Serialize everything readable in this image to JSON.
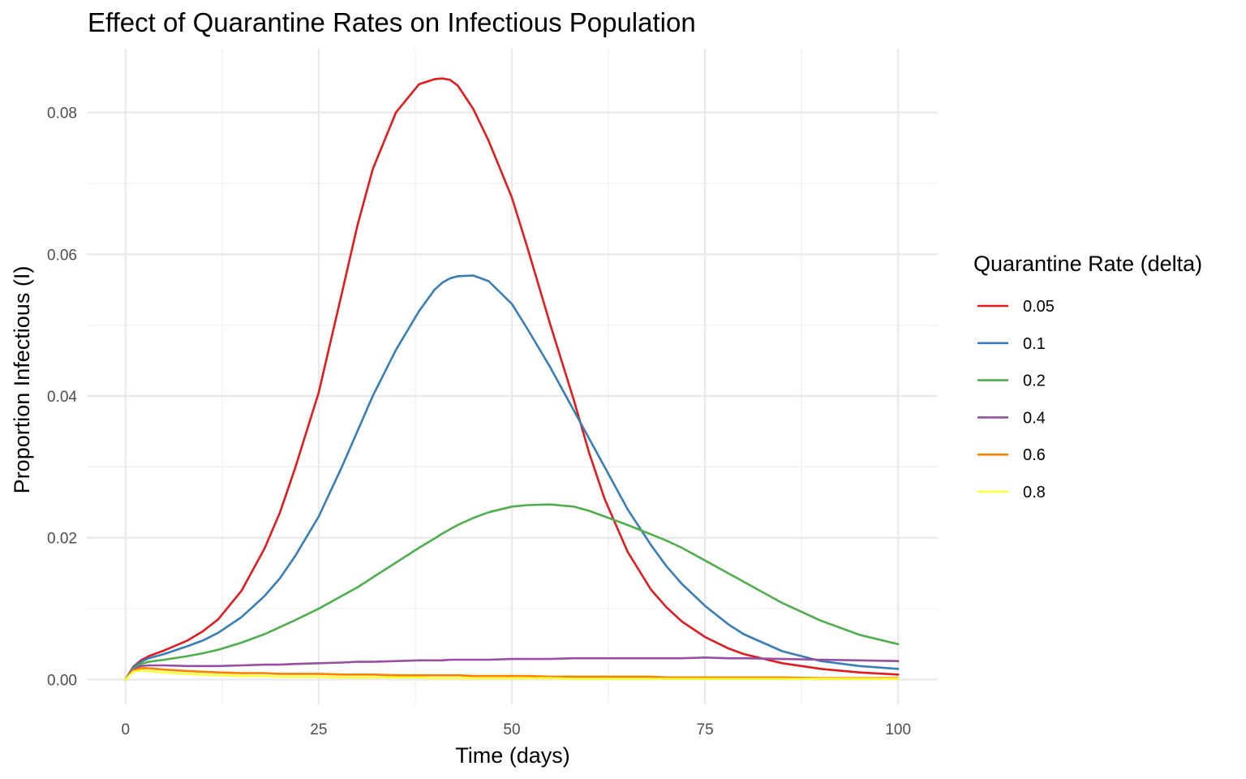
{
  "chart_data": {
    "type": "line",
    "title": "Effect of Quarantine Rates on Infectious Population",
    "xlabel": "Time (days)",
    "ylabel": "Proportion Infectious (I)",
    "xlim": [
      0,
      100
    ],
    "ylim": [
      -0.0035,
      0.089
    ],
    "x_ticks": [
      0,
      25,
      50,
      75,
      100
    ],
    "x_tick_labels": [
      "0",
      "25",
      "50",
      "75",
      "100"
    ],
    "y_ticks": [
      0,
      0.02,
      0.04,
      0.06,
      0.08
    ],
    "y_tick_labels": [
      "0.00",
      "0.02",
      "0.04",
      "0.06",
      "0.08"
    ],
    "grid": true,
    "legend_title": "Quarantine Rate (delta)",
    "legend_position": "right",
    "x": [
      0,
      1,
      2,
      3,
      5,
      8,
      10,
      12,
      15,
      18,
      20,
      22,
      25,
      28,
      30,
      32,
      35,
      38,
      40,
      41,
      42,
      43,
      45,
      47,
      50,
      52,
      55,
      58,
      60,
      62,
      65,
      68,
      70,
      72,
      75,
      78,
      80,
      85,
      90,
      95,
      100
    ],
    "series": [
      {
        "name": "0.05",
        "color": "#e41a1c",
        "values": [
          0,
          0.0018,
          0.0027,
          0.0033,
          0.0041,
          0.0055,
          0.0068,
          0.0085,
          0.0125,
          0.0185,
          0.0236,
          0.03,
          0.0405,
          0.0545,
          0.064,
          0.072,
          0.08,
          0.084,
          0.0847,
          0.0848,
          0.0846,
          0.0838,
          0.0805,
          0.076,
          0.068,
          0.061,
          0.05,
          0.0395,
          0.032,
          0.0255,
          0.018,
          0.0127,
          0.0102,
          0.0082,
          0.006,
          0.0044,
          0.0036,
          0.0023,
          0.0015,
          0.001,
          0.0007
        ]
      },
      {
        "name": "0.1",
        "color": "#377eb8",
        "values": [
          0,
          0.0017,
          0.0025,
          0.003,
          0.0036,
          0.0047,
          0.0055,
          0.0066,
          0.0088,
          0.0118,
          0.0143,
          0.0175,
          0.023,
          0.03,
          0.035,
          0.04,
          0.0465,
          0.052,
          0.055,
          0.056,
          0.0566,
          0.0569,
          0.057,
          0.0562,
          0.053,
          0.0495,
          0.044,
          0.038,
          0.034,
          0.03,
          0.024,
          0.019,
          0.016,
          0.0135,
          0.0104,
          0.0078,
          0.0064,
          0.004,
          0.0026,
          0.0019,
          0.0015
        ]
      },
      {
        "name": "0.2",
        "color": "#4daf4a",
        "values": [
          0,
          0.0015,
          0.0022,
          0.0025,
          0.0028,
          0.0033,
          0.0037,
          0.0042,
          0.0052,
          0.0064,
          0.0074,
          0.0084,
          0.01,
          0.0118,
          0.013,
          0.0144,
          0.0165,
          0.0186,
          0.0199,
          0.0206,
          0.0212,
          0.0218,
          0.0228,
          0.0236,
          0.0244,
          0.0246,
          0.0247,
          0.0244,
          0.0238,
          0.023,
          0.0218,
          0.0205,
          0.0196,
          0.0186,
          0.0168,
          0.015,
          0.0138,
          0.0108,
          0.0083,
          0.0063,
          0.005
        ]
      },
      {
        "name": "0.4",
        "color": "#984ea3",
        "values": [
          0,
          0.0014,
          0.0019,
          0.002,
          0.002,
          0.0019,
          0.0019,
          0.0019,
          0.002,
          0.0021,
          0.0021,
          0.0022,
          0.0023,
          0.0024,
          0.0025,
          0.0025,
          0.0026,
          0.0027,
          0.0027,
          0.0027,
          0.0028,
          0.0028,
          0.0028,
          0.0028,
          0.0029,
          0.0029,
          0.0029,
          0.003,
          0.003,
          0.003,
          0.003,
          0.003,
          0.003,
          0.003,
          0.0031,
          0.003,
          0.003,
          0.0029,
          0.0028,
          0.0027,
          0.0026
        ]
      },
      {
        "name": "0.6",
        "color": "#ff7f00",
        "values": [
          0,
          0.0013,
          0.0016,
          0.0016,
          0.0014,
          0.0012,
          0.0011,
          0.001,
          0.0009,
          0.0009,
          0.0008,
          0.0008,
          0.0008,
          0.0007,
          0.0007,
          0.0007,
          0.0006,
          0.0006,
          0.0006,
          0.0006,
          0.0006,
          0.0006,
          0.0005,
          0.0005,
          0.0005,
          0.0005,
          0.0004,
          0.0004,
          0.0004,
          0.0004,
          0.0004,
          0.0004,
          0.0003,
          0.0003,
          0.0003,
          0.0003,
          0.0003,
          0.0003,
          0.0002,
          0.0002,
          0.0002
        ]
      },
      {
        "name": "0.8",
        "color": "#ffff33",
        "values": [
          0,
          0.0011,
          0.0013,
          0.0012,
          0.001,
          0.0008,
          0.0007,
          0.0006,
          0.0005,
          0.0005,
          0.0004,
          0.0004,
          0.0004,
          0.0003,
          0.0003,
          0.0003,
          0.0003,
          0.0003,
          0.0002,
          0.0002,
          0.0002,
          0.0002,
          0.0002,
          0.0002,
          0.0002,
          0.0002,
          0.0002,
          0.0001,
          0.0001,
          0.0001,
          0.0001,
          0.0001,
          0.0001,
          0.0001,
          0.0001,
          0.0001,
          0.0001,
          0.0001,
          0.0001,
          0.0001,
          0.0001
        ]
      }
    ]
  }
}
